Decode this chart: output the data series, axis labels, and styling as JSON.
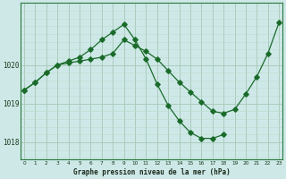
{
  "title": "Graphe pression niveau de la mer (hPa)",
  "background_color": "#cee8e8",
  "plot_bg_color": "#cee8e8",
  "grid_color_major": "#aaccbb",
  "grid_color_minor": "#bbddcc",
  "line_color": "#1a6b2a",
  "xlim": [
    -0.3,
    23.3
  ],
  "ylim": [
    1017.55,
    1021.6
  ],
  "yticks": [
    1018,
    1019,
    1020
  ],
  "xtick_labels": [
    "0",
    "1",
    "2",
    "3",
    "4",
    "5",
    "6",
    "7",
    "8",
    "9",
    "10",
    "11",
    "12",
    "13",
    "14",
    "15",
    "16",
    "17",
    "18",
    "19",
    "20",
    "21",
    "22",
    "23"
  ],
  "series1_x": [
    0,
    1,
    2,
    3,
    4,
    5,
    6,
    7,
    8,
    9,
    10,
    11,
    12,
    13,
    14,
    15,
    16,
    17,
    18,
    19,
    20,
    21,
    22,
    23
  ],
  "series1_y": [
    1019.35,
    1019.55,
    1019.8,
    1020.0,
    1020.05,
    1020.1,
    1020.15,
    1020.2,
    1020.3,
    1020.65,
    1020.5,
    1020.35,
    1020.15,
    1019.85,
    1019.55,
    1019.3,
    1019.05,
    1018.8,
    1018.75,
    1018.85,
    1019.25,
    1019.7,
    1020.3,
    1021.1
  ],
  "series2_x": [
    0,
    1,
    2,
    3,
    4,
    5,
    6,
    7,
    8,
    9,
    10,
    11,
    12,
    13,
    14,
    15,
    16,
    17,
    18
  ],
  "series2_y": [
    1019.35,
    1019.55,
    1019.8,
    1020.0,
    1020.1,
    1020.2,
    1020.4,
    1020.65,
    1020.85,
    1021.05,
    1020.65,
    1020.15,
    1019.5,
    1018.95,
    1018.55,
    1018.25,
    1018.1,
    1018.1,
    1018.2
  ]
}
